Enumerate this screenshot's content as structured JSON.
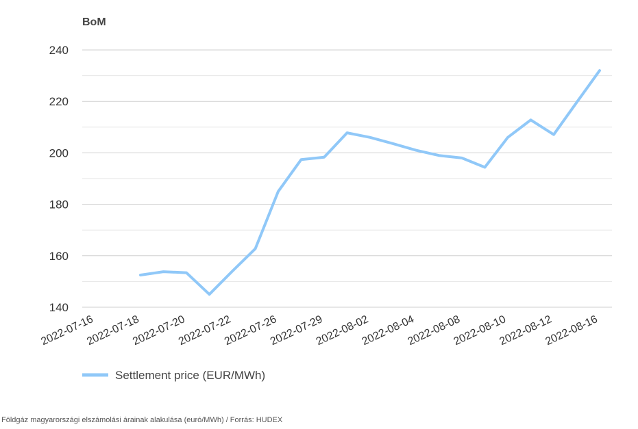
{
  "chart_data": {
    "type": "line",
    "title": "",
    "ylabel": "BoM",
    "xlabel": "",
    "ylim": [
      140,
      240
    ],
    "yticks": [
      140,
      160,
      180,
      200,
      220,
      240
    ],
    "grid": true,
    "legend_position": "bottom-left",
    "x_tick_labels": [
      "2022-07-16",
      "2022-07-18",
      "2022-07-20",
      "2022-07-22",
      "2022-07-26",
      "2022-07-29",
      "2022-08-02",
      "2022-08-04",
      "2022-08-08",
      "2022-08-10",
      "2022-08-12",
      "2022-08-16"
    ],
    "series": [
      {
        "name": "Settlement price (EUR/MWh)",
        "color": "#90c8f8",
        "values": [
          152.5,
          153.8,
          153.4,
          145.0,
          154.0,
          162.7,
          185.0,
          197.4,
          198.3,
          207.8,
          206.0,
          203.6,
          201.0,
          199.0,
          198.0,
          194.4,
          206.0,
          212.8,
          207.1,
          219.6,
          232.0
        ]
      }
    ]
  },
  "caption": "Földgáz magyarországi elszámolási árainak alakulása (euró/MWh) / Forrás: HUDEX"
}
